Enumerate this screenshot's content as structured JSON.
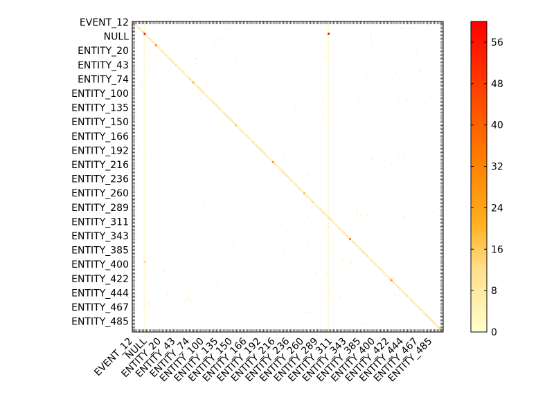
{
  "chart_data": {
    "type": "heatmap",
    "title": "",
    "xlabel": "",
    "ylabel": "",
    "labels": [
      "EVENT_12",
      "NULL",
      "ENTITY_20",
      "ENTITY_43",
      "ENTITY_74",
      "ENTITY_100",
      "ENTITY_135",
      "ENTITY_150",
      "ENTITY_166",
      "ENTITY_192",
      "ENTITY_216",
      "ENTITY_236",
      "ENTITY_260",
      "ENTITY_289",
      "ENTITY_311",
      "ENTITY_343",
      "ENTITY_385",
      "ENTITY_400",
      "ENTITY_422",
      "ENTITY_444",
      "ENTITY_467",
      "ENTITY_485"
    ],
    "label_indices": [
      0,
      10,
      20,
      30,
      40,
      50,
      60,
      70,
      80,
      90,
      100,
      110,
      120,
      130,
      140,
      150,
      160,
      170,
      180,
      190,
      200,
      210
    ],
    "matrix_size": 218,
    "value_range": [
      0,
      60
    ],
    "colorbar": {
      "ticks": [
        0,
        8,
        16,
        24,
        32,
        40,
        48,
        56
      ],
      "colors": [
        "#ffffcc",
        "#ffcc55",
        "#ff9900",
        "#ff6600",
        "#ff0000"
      ]
    },
    "hot_cells": [
      {
        "row": 8,
        "col": 8,
        "value": 58
      },
      {
        "row": 8,
        "col": 137,
        "value": 58
      },
      {
        "row": 16,
        "col": 16,
        "value": 30
      },
      {
        "row": 42,
        "col": 42,
        "value": 20
      },
      {
        "row": 98,
        "col": 98,
        "value": 28
      },
      {
        "row": 152,
        "col": 152,
        "value": 32
      },
      {
        "row": 181,
        "col": 181,
        "value": 28
      },
      {
        "row": 120,
        "col": 120,
        "value": 18
      },
      {
        "row": 72,
        "col": 72,
        "value": 16
      },
      {
        "row": 214,
        "col": 214,
        "value": 12
      },
      {
        "row": 168,
        "col": 8,
        "value": 14
      },
      {
        "row": 205,
        "col": 205,
        "value": 10
      }
    ],
    "diagonal_value": 5,
    "vertical_streaks": [
      {
        "col": 8,
        "value": 3
      },
      {
        "col": 137,
        "value": 4
      }
    ]
  }
}
